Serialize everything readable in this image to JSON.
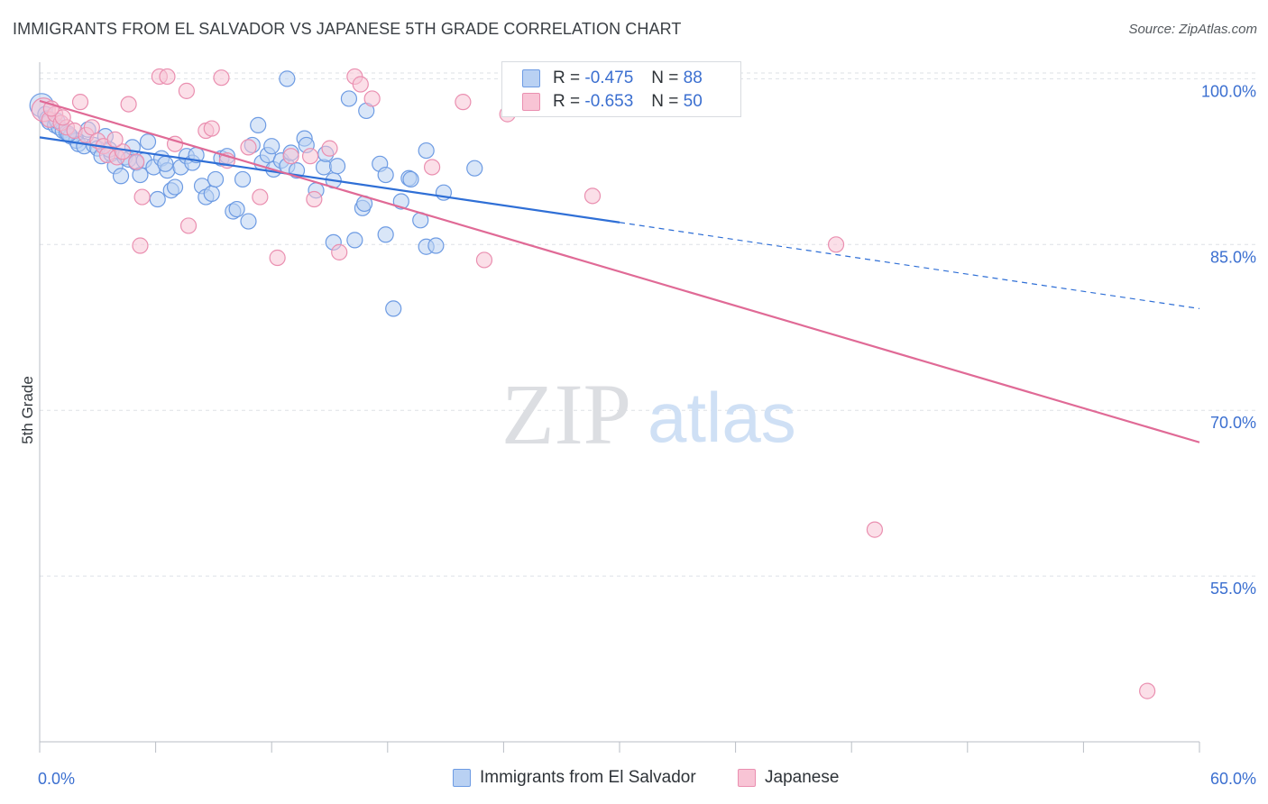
{
  "title": "IMMIGRANTS FROM EL SALVADOR VS JAPANESE 5TH GRADE CORRELATION CHART",
  "source": "Source: ZipAtlas.com",
  "colors": {
    "blue_fill": "#b9d1f3",
    "blue_stroke": "#6d9be3",
    "blue_line": "#2f6fd6",
    "pink_fill": "#f8c4d5",
    "pink_stroke": "#ea8fb0",
    "pink_line": "#e06a96",
    "axis_text": "#3b6fd0",
    "grid": "#dde1e6"
  },
  "legend": {
    "rows": [
      {
        "r_label": "R =",
        "r_value": "-0.475",
        "n_label": "N =",
        "n_value": "88"
      },
      {
        "r_label": "R =",
        "r_value": "-0.653",
        "n_label": "N =",
        "n_value": "50"
      }
    ]
  },
  "bottom_legend": [
    "Immigrants from El Salvador",
    "Japanese"
  ],
  "chart_data": {
    "type": "scatter",
    "title": "IMMIGRANTS FROM EL SALVADOR VS JAPANESE 5TH GRADE CORRELATION CHART",
    "xlabel": "",
    "ylabel": "5th Grade",
    "xlim": [
      0,
      60
    ],
    "ylim": [
      40,
      101.5
    ],
    "x_tick_labels": [
      "0.0%",
      "60.0%"
    ],
    "y_ticks": [
      100,
      85,
      70,
      55
    ],
    "y_tick_labels": [
      "100.0%",
      "85.0%",
      "70.0%",
      "55.0%"
    ],
    "grid": "horizontal dashed",
    "watermark": "ZIPatlas",
    "series": [
      {
        "name": "Immigrants from El Salvador",
        "color": "#6d9be3",
        "trend": {
          "x": [
            0,
            30,
            60
          ],
          "y": [
            94.7,
            87.0,
            79.2
          ],
          "solid_to_x": 30
        },
        "points": [
          [
            0.1,
            97.6
          ],
          [
            0.3,
            96.8
          ],
          [
            0.4,
            96.4
          ],
          [
            0.5,
            96.1
          ],
          [
            0.8,
            95.8
          ],
          [
            1.0,
            95.6
          ],
          [
            1.2,
            95.3
          ],
          [
            1.4,
            95.1
          ],
          [
            1.6,
            94.8
          ],
          [
            1.9,
            94.4
          ],
          [
            2.0,
            94.1
          ],
          [
            2.3,
            93.9
          ],
          [
            2.5,
            95.4
          ],
          [
            2.8,
            94.0
          ],
          [
            3.0,
            93.7
          ],
          [
            3.2,
            93.0
          ],
          [
            3.4,
            94.8
          ],
          [
            3.7,
            93.2
          ],
          [
            3.9,
            92.1
          ],
          [
            4.2,
            91.2
          ],
          [
            4.4,
            92.9
          ],
          [
            4.6,
            92.7
          ],
          [
            4.8,
            93.8
          ],
          [
            5.0,
            92.4
          ],
          [
            5.2,
            91.3
          ],
          [
            5.4,
            92.6
          ],
          [
            5.6,
            94.3
          ],
          [
            5.9,
            92.0
          ],
          [
            6.1,
            89.1
          ],
          [
            6.3,
            92.8
          ],
          [
            6.6,
            91.7
          ],
          [
            6.8,
            89.9
          ],
          [
            7.0,
            90.2
          ],
          [
            7.3,
            92.0
          ],
          [
            7.6,
            93.0
          ],
          [
            7.9,
            92.4
          ],
          [
            8.1,
            93.1
          ],
          [
            8.4,
            90.3
          ],
          [
            8.6,
            89.3
          ],
          [
            8.9,
            89.6
          ],
          [
            9.1,
            90.9
          ],
          [
            9.4,
            92.8
          ],
          [
            9.7,
            93.0
          ],
          [
            10.0,
            88.0
          ],
          [
            10.2,
            88.2
          ],
          [
            10.5,
            90.9
          ],
          [
            10.8,
            87.1
          ],
          [
            11.0,
            94.0
          ],
          [
            11.3,
            95.8
          ],
          [
            11.5,
            92.4
          ],
          [
            11.8,
            93.1
          ],
          [
            12.1,
            91.8
          ],
          [
            12.5,
            92.6
          ],
          [
            12.8,
            92.1
          ],
          [
            13.0,
            93.3
          ],
          [
            13.3,
            91.7
          ],
          [
            13.7,
            94.6
          ],
          [
            13.8,
            94.0
          ],
          [
            14.3,
            89.9
          ],
          [
            14.7,
            92.0
          ],
          [
            15.2,
            90.8
          ],
          [
            15.4,
            92.1
          ],
          [
            15.2,
            85.2
          ],
          [
            16.0,
            98.2
          ],
          [
            16.3,
            85.4
          ],
          [
            16.7,
            88.3
          ],
          [
            16.8,
            88.7
          ],
          [
            16.9,
            97.1
          ],
          [
            17.6,
            92.3
          ],
          [
            17.9,
            85.9
          ],
          [
            17.9,
            91.3
          ],
          [
            18.3,
            79.2
          ],
          [
            18.7,
            88.9
          ],
          [
            19.1,
            91.0
          ],
          [
            19.2,
            90.9
          ],
          [
            19.7,
            87.2
          ],
          [
            20.0,
            93.5
          ],
          [
            20.0,
            84.8
          ],
          [
            20.5,
            84.9
          ],
          [
            20.9,
            89.7
          ],
          [
            22.5,
            91.9
          ],
          [
            0.9,
            96.2
          ],
          [
            1.5,
            95.0
          ],
          [
            3.6,
            93.6
          ],
          [
            6.5,
            92.3
          ],
          [
            12.0,
            93.9
          ],
          [
            14.8,
            93.2
          ],
          [
            12.8,
            100.0
          ]
        ]
      },
      {
        "name": "Japanese",
        "color": "#ea8fb0",
        "trend": {
          "x": [
            0,
            60
          ],
          "y": [
            98.0,
            67.1
          ]
        },
        "points": [
          [
            0.2,
            97.2
          ],
          [
            0.5,
            96.3
          ],
          [
            0.8,
            96.8
          ],
          [
            1.1,
            96.0
          ],
          [
            1.4,
            95.6
          ],
          [
            1.8,
            95.3
          ],
          [
            2.1,
            97.9
          ],
          [
            2.4,
            94.9
          ],
          [
            2.7,
            95.6
          ],
          [
            3.0,
            94.4
          ],
          [
            3.3,
            93.9
          ],
          [
            3.5,
            93.1
          ],
          [
            4.0,
            92.9
          ],
          [
            4.3,
            93.4
          ],
          [
            4.6,
            97.7
          ],
          [
            5.0,
            92.5
          ],
          [
            5.3,
            89.3
          ],
          [
            5.2,
            84.9
          ],
          [
            6.2,
            100.2
          ],
          [
            6.6,
            100.2
          ],
          [
            7.0,
            94.1
          ],
          [
            7.6,
            98.9
          ],
          [
            7.7,
            86.7
          ],
          [
            8.6,
            95.3
          ],
          [
            8.9,
            95.5
          ],
          [
            9.4,
            100.1
          ],
          [
            9.7,
            92.6
          ],
          [
            10.8,
            93.8
          ],
          [
            11.4,
            89.3
          ],
          [
            12.3,
            83.8
          ],
          [
            13.0,
            93.0
          ],
          [
            14.0,
            93.0
          ],
          [
            14.2,
            89.1
          ],
          [
            15.0,
            93.7
          ],
          [
            15.5,
            84.3
          ],
          [
            16.3,
            100.2
          ],
          [
            16.6,
            99.5
          ],
          [
            17.2,
            98.2
          ],
          [
            20.3,
            92.0
          ],
          [
            21.9,
            97.9
          ],
          [
            23.0,
            83.6
          ],
          [
            24.2,
            96.8
          ],
          [
            28.6,
            89.4
          ],
          [
            29.6,
            100.2
          ],
          [
            41.2,
            85.0
          ],
          [
            43.2,
            59.2
          ],
          [
            57.3,
            44.6
          ],
          [
            3.9,
            94.5
          ],
          [
            1.2,
            96.5
          ],
          [
            0.6,
            97.3
          ]
        ]
      }
    ]
  }
}
